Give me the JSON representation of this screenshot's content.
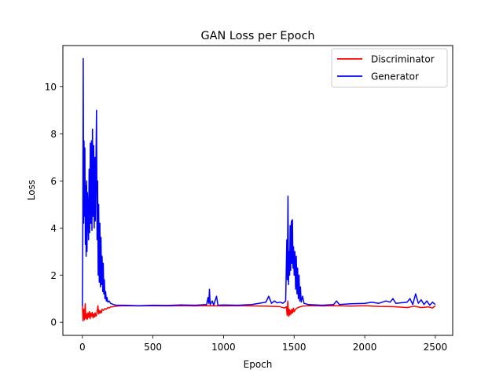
{
  "chart_data": {
    "type": "line",
    "title": "GAN Loss per Epoch",
    "xlabel": "Epoch",
    "ylabel": "Loss",
    "xlim": [
      -138,
      2623
    ],
    "ylim": [
      -0.56,
      11.75
    ],
    "xticks": [
      0,
      500,
      1000,
      1500,
      2000,
      2500
    ],
    "xtick_labels": [
      "0",
      "500",
      "1000",
      "1500",
      "2000",
      "2500"
    ],
    "yticks": [
      0,
      2,
      4,
      6,
      8,
      10
    ],
    "ytick_labels": [
      "0",
      "2",
      "4",
      "6",
      "8",
      "10"
    ],
    "grid": false,
    "legend_position": "top-right",
    "series": [
      {
        "name": "Discriminator",
        "color": "#ff0000",
        "points": [
          [
            0,
            0.72
          ],
          [
            5,
            0.05
          ],
          [
            10,
            0.55
          ],
          [
            15,
            0.1
          ],
          [
            20,
            0.78
          ],
          [
            25,
            0.15
          ],
          [
            30,
            0.35
          ],
          [
            35,
            0.12
          ],
          [
            40,
            0.4
          ],
          [
            45,
            0.2
          ],
          [
            50,
            0.45
          ],
          [
            55,
            0.15
          ],
          [
            60,
            0.38
          ],
          [
            65,
            0.25
          ],
          [
            70,
            0.42
          ],
          [
            75,
            0.18
          ],
          [
            80,
            0.35
          ],
          [
            85,
            0.22
          ],
          [
            90,
            0.4
          ],
          [
            95,
            0.25
          ],
          [
            100,
            0.3
          ],
          [
            105,
            0.48
          ],
          [
            110,
            0.7
          ],
          [
            115,
            0.35
          ],
          [
            120,
            0.5
          ],
          [
            125,
            0.38
          ],
          [
            130,
            0.48
          ],
          [
            135,
            0.4
          ],
          [
            140,
            0.55
          ],
          [
            150,
            0.5
          ],
          [
            160,
            0.58
          ],
          [
            170,
            0.55
          ],
          [
            180,
            0.62
          ],
          [
            190,
            0.6
          ],
          [
            200,
            0.65
          ],
          [
            220,
            0.66
          ],
          [
            240,
            0.68
          ],
          [
            260,
            0.69
          ],
          [
            300,
            0.7
          ],
          [
            400,
            0.69
          ],
          [
            500,
            0.7
          ],
          [
            600,
            0.69
          ],
          [
            700,
            0.7
          ],
          [
            800,
            0.69
          ],
          [
            900,
            0.7
          ],
          [
            1000,
            0.69
          ],
          [
            1100,
            0.7
          ],
          [
            1200,
            0.69
          ],
          [
            1300,
            0.68
          ],
          [
            1400,
            0.66
          ],
          [
            1430,
            0.6
          ],
          [
            1445,
            0.65
          ],
          [
            1450,
            0.3
          ],
          [
            1455,
            0.9
          ],
          [
            1460,
            0.25
          ],
          [
            1465,
            0.55
          ],
          [
            1470,
            0.3
          ],
          [
            1475,
            0.5
          ],
          [
            1480,
            0.35
          ],
          [
            1485,
            0.55
          ],
          [
            1490,
            0.4
          ],
          [
            1495,
            0.6
          ],
          [
            1500,
            0.45
          ],
          [
            1510,
            0.55
          ],
          [
            1520,
            0.6
          ],
          [
            1540,
            0.65
          ],
          [
            1560,
            0.68
          ],
          [
            1600,
            0.7
          ],
          [
            1700,
            0.69
          ],
          [
            1800,
            0.7
          ],
          [
            1900,
            0.68
          ],
          [
            2000,
            0.7
          ],
          [
            2100,
            0.67
          ],
          [
            2200,
            0.66
          ],
          [
            2300,
            0.62
          ],
          [
            2350,
            0.68
          ],
          [
            2400,
            0.62
          ],
          [
            2450,
            0.65
          ],
          [
            2480,
            0.6
          ],
          [
            2500,
            0.7
          ]
        ]
      },
      {
        "name": "Generator",
        "color": "#0000ff",
        "points": [
          [
            0,
            0.7
          ],
          [
            3,
            3.5
          ],
          [
            6,
            11.2
          ],
          [
            9,
            4.2
          ],
          [
            12,
            7.7
          ],
          [
            15,
            4.5
          ],
          [
            18,
            7.4
          ],
          [
            21,
            3.3
          ],
          [
            24,
            5.8
          ],
          [
            27,
            2.8
          ],
          [
            30,
            6.0
          ],
          [
            33,
            3.0
          ],
          [
            36,
            5.5
          ],
          [
            40,
            4.8
          ],
          [
            44,
            3.5
          ],
          [
            48,
            6.5
          ],
          [
            52,
            3.8
          ],
          [
            56,
            7.6
          ],
          [
            60,
            4.2
          ],
          [
            64,
            7.7
          ],
          [
            68,
            3.9
          ],
          [
            72,
            8.2
          ],
          [
            76,
            4.5
          ],
          [
            80,
            7.5
          ],
          [
            84,
            4.0
          ],
          [
            88,
            7.0
          ],
          [
            92,
            4.3
          ],
          [
            96,
            6.5
          ],
          [
            100,
            9.0
          ],
          [
            104,
            3.5
          ],
          [
            108,
            6.0
          ],
          [
            112,
            2.0
          ],
          [
            116,
            5.0
          ],
          [
            120,
            1.7
          ],
          [
            124,
            4.2
          ],
          [
            128,
            1.5
          ],
          [
            132,
            3.6
          ],
          [
            136,
            1.6
          ],
          [
            140,
            2.8
          ],
          [
            144,
            1.3
          ],
          [
            148,
            2.5
          ],
          [
            152,
            1.2
          ],
          [
            156,
            1.8
          ],
          [
            160,
            1.0
          ],
          [
            165,
            1.3
          ],
          [
            170,
            0.9
          ],
          [
            175,
            1.05
          ],
          [
            180,
            0.85
          ],
          [
            190,
            0.9
          ],
          [
            200,
            0.8
          ],
          [
            220,
            0.75
          ],
          [
            240,
            0.72
          ],
          [
            300,
            0.72
          ],
          [
            400,
            0.7
          ],
          [
            500,
            0.72
          ],
          [
            600,
            0.71
          ],
          [
            700,
            0.73
          ],
          [
            800,
            0.72
          ],
          [
            880,
            0.75
          ],
          [
            890,
            1.05
          ],
          [
            895,
            0.8
          ],
          [
            900,
            1.4
          ],
          [
            905,
            0.75
          ],
          [
            920,
            0.9
          ],
          [
            930,
            0.72
          ],
          [
            950,
            1.1
          ],
          [
            960,
            0.72
          ],
          [
            1000,
            0.73
          ],
          [
            1100,
            0.72
          ],
          [
            1200,
            0.75
          ],
          [
            1250,
            0.8
          ],
          [
            1300,
            0.85
          ],
          [
            1320,
            1.1
          ],
          [
            1340,
            0.8
          ],
          [
            1360,
            0.9
          ],
          [
            1380,
            0.82
          ],
          [
            1400,
            0.85
          ],
          [
            1420,
            0.8
          ],
          [
            1440,
            0.9
          ],
          [
            1448,
            3.5
          ],
          [
            1452,
            1.8
          ],
          [
            1456,
            5.35
          ],
          [
            1460,
            1.6
          ],
          [
            1464,
            3.0
          ],
          [
            1468,
            2.0
          ],
          [
            1472,
            4.1
          ],
          [
            1476,
            2.2
          ],
          [
            1480,
            4.3
          ],
          [
            1484,
            2.5
          ],
          [
            1488,
            4.35
          ],
          [
            1492,
            2.3
          ],
          [
            1496,
            3.2
          ],
          [
            1500,
            2.0
          ],
          [
            1505,
            3.0
          ],
          [
            1510,
            1.4
          ],
          [
            1515,
            2.8
          ],
          [
            1520,
            1.2
          ],
          [
            1525,
            2.3
          ],
          [
            1530,
            1.0
          ],
          [
            1535,
            2.0
          ],
          [
            1540,
            0.9
          ],
          [
            1545,
            1.5
          ],
          [
            1550,
            0.85
          ],
          [
            1560,
            1.1
          ],
          [
            1570,
            0.8
          ],
          [
            1600,
            0.75
          ],
          [
            1700,
            0.72
          ],
          [
            1780,
            0.75
          ],
          [
            1800,
            0.9
          ],
          [
            1820,
            0.75
          ],
          [
            1900,
            0.78
          ],
          [
            2000,
            0.8
          ],
          [
            2050,
            0.85
          ],
          [
            2100,
            0.8
          ],
          [
            2150,
            0.9
          ],
          [
            2180,
            0.85
          ],
          [
            2200,
            1.0
          ],
          [
            2220,
            0.8
          ],
          [
            2300,
            0.85
          ],
          [
            2320,
            1.0
          ],
          [
            2340,
            0.75
          ],
          [
            2360,
            1.2
          ],
          [
            2380,
            0.8
          ],
          [
            2400,
            0.95
          ],
          [
            2420,
            0.75
          ],
          [
            2440,
            0.9
          ],
          [
            2460,
            0.72
          ],
          [
            2480,
            0.85
          ],
          [
            2500,
            0.75
          ]
        ]
      }
    ]
  }
}
